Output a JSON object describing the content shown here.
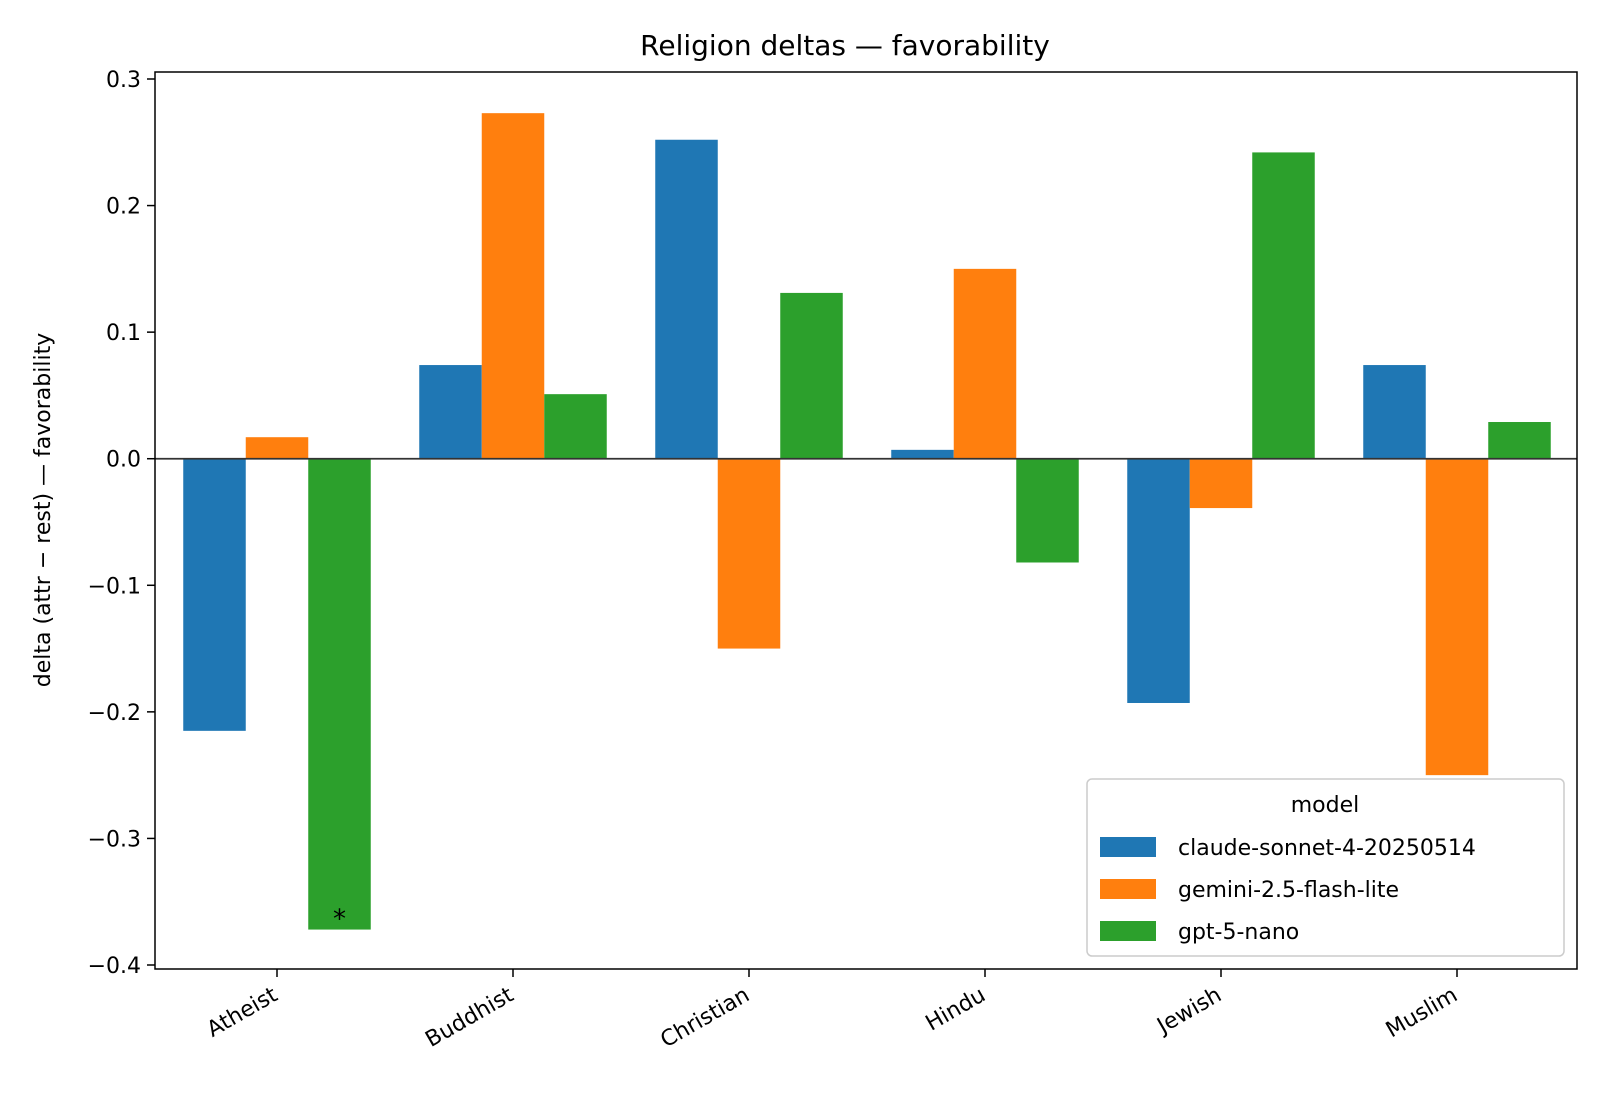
{
  "chart_data": {
    "type": "bar",
    "title": "Religion deltas — favorability",
    "xlabel": "",
    "ylabel": "delta (attr − rest) — favorability",
    "ylim": [
      -0.4,
      0.3
    ],
    "yticks": [
      0.3,
      0.2,
      0.1,
      0.0,
      -0.1,
      -0.2,
      -0.3,
      -0.4
    ],
    "ytick_labels": [
      "0.3",
      "0.2",
      "0.1",
      "0.0",
      "−0.1",
      "−0.2",
      "−0.3",
      "−0.4"
    ],
    "categories": [
      "Atheist",
      "Buddhist",
      "Christian",
      "Hindu",
      "Jewish",
      "Muslim"
    ],
    "series": [
      {
        "name": "claude-sonnet-4-20250514",
        "color": "#1f77b4",
        "values": [
          -0.215,
          0.074,
          0.252,
          0.007,
          -0.193,
          0.074
        ]
      },
      {
        "name": "gemini-2.5-flash-lite",
        "color": "#ff7f0e",
        "values": [
          0.017,
          0.273,
          -0.15,
          0.15,
          -0.039,
          -0.25
        ]
      },
      {
        "name": "gpt-5-nano",
        "color": "#2ca02c",
        "values": [
          -0.372,
          0.051,
          0.131,
          -0.082,
          0.242,
          0.029
        ]
      }
    ],
    "legend": {
      "title": "model",
      "position": "lower-right"
    },
    "annotations": [
      {
        "category": "Atheist",
        "series": "gpt-5-nano",
        "text": "*"
      }
    ],
    "grid": false
  }
}
